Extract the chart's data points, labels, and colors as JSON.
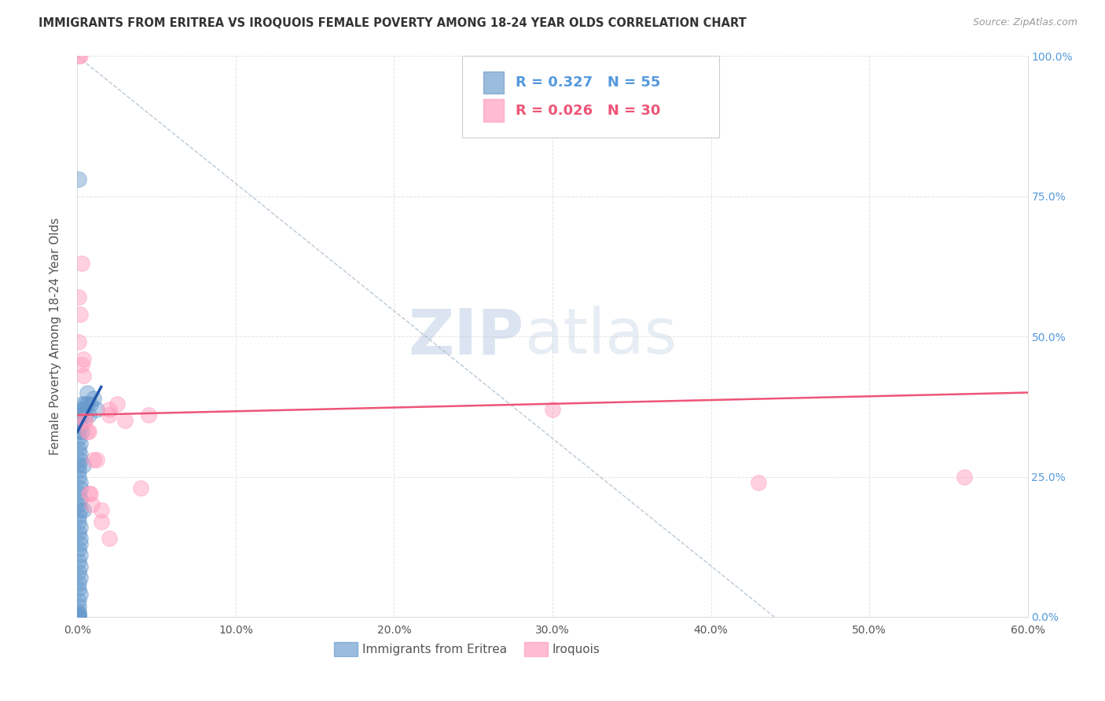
{
  "title": "IMMIGRANTS FROM ERITREA VS IROQUOIS FEMALE POVERTY AMONG 18-24 YEAR OLDS CORRELATION CHART",
  "source": "Source: ZipAtlas.com",
  "ylabel": "Female Poverty Among 18-24 Year Olds",
  "xlabel_blue": "Immigrants from Eritrea",
  "xlabel_pink": "Iroquois",
  "xlim": [
    0.0,
    60.0
  ],
  "ylim": [
    0.0,
    100.0
  ],
  "xticks": [
    0.0,
    10.0,
    20.0,
    30.0,
    40.0,
    50.0,
    60.0
  ],
  "xticklabels": [
    "0.0%",
    "10.0%",
    "20.0%",
    "30.0%",
    "40.0%",
    "50.0%",
    "60.0%"
  ],
  "yticks": [
    0.0,
    25.0,
    50.0,
    75.0,
    100.0
  ],
  "yticklabels_right": [
    "0.0%",
    "25.0%",
    "50.0%",
    "75.0%",
    "100.0%"
  ],
  "legend_blue_R": "0.327",
  "legend_blue_N": "55",
  "legend_pink_R": "0.026",
  "legend_pink_N": "30",
  "blue_color": "#6699CC",
  "pink_color": "#FF99BB",
  "blue_scatter": [
    [
      0.1,
      78.0
    ],
    [
      0.1,
      5.0
    ],
    [
      0.1,
      8.0
    ],
    [
      0.1,
      12.0
    ],
    [
      0.1,
      20.0
    ],
    [
      0.1,
      22.0
    ],
    [
      0.1,
      25.0
    ],
    [
      0.1,
      26.0
    ],
    [
      0.1,
      27.0
    ],
    [
      0.1,
      30.0
    ],
    [
      0.1,
      32.0
    ],
    [
      0.1,
      33.0
    ],
    [
      0.1,
      35.0
    ],
    [
      0.1,
      15.0
    ],
    [
      0.1,
      17.0
    ],
    [
      0.1,
      18.0
    ],
    [
      0.1,
      10.0
    ],
    [
      0.1,
      6.0
    ],
    [
      0.1,
      3.0
    ],
    [
      0.1,
      2.0
    ],
    [
      0.1,
      1.0
    ],
    [
      0.1,
      0.5
    ],
    [
      0.2,
      36.0
    ],
    [
      0.2,
      34.0
    ],
    [
      0.2,
      31.0
    ],
    [
      0.2,
      29.0
    ],
    [
      0.2,
      28.0
    ],
    [
      0.2,
      24.0
    ],
    [
      0.2,
      23.0
    ],
    [
      0.2,
      21.0
    ],
    [
      0.2,
      19.0
    ],
    [
      0.2,
      16.0
    ],
    [
      0.2,
      14.0
    ],
    [
      0.2,
      13.0
    ],
    [
      0.2,
      11.0
    ],
    [
      0.2,
      9.0
    ],
    [
      0.2,
      7.0
    ],
    [
      0.2,
      4.0
    ],
    [
      0.3,
      38.0
    ],
    [
      0.3,
      37.0
    ],
    [
      0.3,
      33.0
    ],
    [
      0.4,
      37.0
    ],
    [
      0.4,
      27.0
    ],
    [
      0.4,
      19.0
    ],
    [
      0.5,
      38.0
    ],
    [
      0.5,
      36.0
    ],
    [
      0.6,
      40.0
    ],
    [
      0.6,
      38.0
    ],
    [
      0.7,
      36.0
    ],
    [
      0.8,
      38.0
    ],
    [
      1.0,
      39.0
    ],
    [
      1.2,
      37.0
    ],
    [
      0.1,
      0.2
    ],
    [
      0.1,
      0.1
    ],
    [
      0.1,
      0.3
    ]
  ],
  "pink_scatter": [
    [
      0.1,
      100.0
    ],
    [
      0.2,
      100.0
    ],
    [
      0.1,
      57.0
    ],
    [
      0.1,
      49.0
    ],
    [
      0.3,
      63.0
    ],
    [
      0.2,
      54.0
    ],
    [
      0.3,
      45.0
    ],
    [
      0.4,
      46.0
    ],
    [
      0.4,
      43.0
    ],
    [
      0.5,
      35.0
    ],
    [
      0.5,
      35.0
    ],
    [
      0.6,
      33.0
    ],
    [
      0.7,
      33.0
    ],
    [
      0.7,
      22.0
    ],
    [
      0.8,
      22.0
    ],
    [
      0.9,
      20.0
    ],
    [
      1.0,
      28.0
    ],
    [
      1.2,
      28.0
    ],
    [
      1.5,
      19.0
    ],
    [
      1.5,
      17.0
    ],
    [
      2.0,
      37.0
    ],
    [
      2.0,
      36.0
    ],
    [
      2.5,
      38.0
    ],
    [
      3.0,
      35.0
    ],
    [
      4.0,
      23.0
    ],
    [
      4.5,
      36.0
    ],
    [
      30.0,
      37.0
    ],
    [
      43.0,
      24.0
    ],
    [
      56.0,
      25.0
    ],
    [
      2.0,
      14.0
    ]
  ],
  "blue_trendline_x": [
    0.0,
    1.5
  ],
  "blue_trendline_y": [
    33.0,
    41.0
  ],
  "pink_trendline_x": [
    0.0,
    60.0
  ],
  "pink_trendline_y": [
    36.0,
    40.0
  ],
  "diag_line_x": [
    0.0,
    44.0
  ],
  "diag_line_y": [
    100.0,
    0.0
  ],
  "watermark_zip": "ZIP",
  "watermark_atlas": "atlas",
  "watermark_color": "#C8D8E8",
  "background_color": "#FFFFFF",
  "grid_color": "#DDDDDD",
  "title_color": "#333333",
  "right_axis_color": "#5599DD",
  "blue_trend_color": "#2255AA",
  "pink_trend_color": "#EE5577"
}
